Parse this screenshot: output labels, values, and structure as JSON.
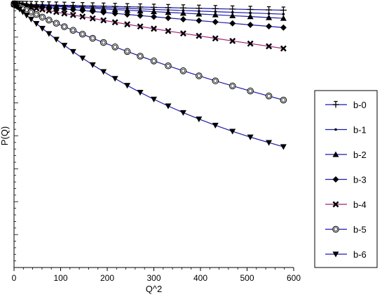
{
  "chart_data": {
    "type": "line",
    "title": "",
    "xlabel": "Q^2",
    "ylabel": "P(Q)",
    "xlim": [
      0,
      600
    ],
    "xticks": [
      "0",
      "100",
      "200",
      "300",
      "400",
      "500",
      "600"
    ],
    "ylim": [
      0.0,
      1.0
    ],
    "y_tick_labels_shown": false,
    "grid": false,
    "legend_position": "right",
    "x": [
      0,
      0.75,
      3,
      6.75,
      12,
      18.75,
      27,
      36.75,
      48,
      60.75,
      75,
      90.75,
      108,
      126.75,
      147,
      168.75,
      192,
      216.75,
      243,
      270.75,
      300,
      330.75,
      363,
      396.75,
      432,
      468.75,
      507,
      546.75,
      578
    ],
    "series": [
      {
        "name": "b-0",
        "marker": "tick",
        "line_color": "#1a1aa6",
        "values": [
          1.0,
          0.99997,
          0.99988,
          0.99973,
          0.99952,
          0.99925,
          0.99892,
          0.99853,
          0.99808,
          0.99757,
          0.997,
          0.99638,
          0.99569,
          0.99495,
          0.99415,
          0.99329,
          0.99237,
          0.9914,
          0.99036,
          0.98928,
          0.98813,
          0.98693,
          0.98567,
          0.98435,
          0.98298,
          0.98155,
          0.98007,
          0.97853,
          0.97729
        ]
      },
      {
        "name": "b-1",
        "marker": "dot",
        "line_color": "#1a1aa6",
        "values": [
          1.0,
          0.99995,
          0.9998,
          0.99955,
          0.9992,
          0.99875,
          0.9982,
          0.99755,
          0.9968,
          0.99595,
          0.99501,
          0.99396,
          0.99282,
          0.99158,
          0.99024,
          0.98881,
          0.98728,
          0.98566,
          0.98393,
          0.98212,
          0.98021,
          0.97821,
          0.97612,
          0.97393,
          0.97165,
          0.96928,
          0.96682,
          0.96428,
          0.96222
        ]
      },
      {
        "name": "b-2",
        "marker": "triangle-up",
        "line_color": "#1a1aa6",
        "values": [
          1.0,
          0.99993,
          0.99971,
          0.99936,
          0.99886,
          0.99822,
          0.99744,
          0.99651,
          0.99545,
          0.99424,
          0.9929,
          0.99141,
          0.98979,
          0.98802,
          0.98612,
          0.98409,
          0.98192,
          0.97961,
          0.97717,
          0.97459,
          0.97189,
          0.96906,
          0.9661,
          0.96301,
          0.95979,
          0.95646,
          0.953,
          0.94942,
          0.94653
        ]
      },
      {
        "name": "b-3",
        "marker": "diamond",
        "line_color": "#1a1aa6",
        "values": [
          1.0,
          0.99988,
          0.9995,
          0.99888,
          0.998,
          0.99688,
          0.99552,
          0.99392,
          0.99207,
          0.98999,
          0.98768,
          0.98513,
          0.98235,
          0.97934,
          0.97612,
          0.97267,
          0.96901,
          0.96513,
          0.96105,
          0.95677,
          0.9523,
          0.94764,
          0.94279,
          0.93776,
          0.93256,
          0.92719,
          0.92165,
          0.91596,
          0.91134
        ]
      },
      {
        "name": "b-4",
        "marker": "x",
        "line_color": "#a0207a",
        "values": [
          1.0,
          0.99975,
          0.999,
          0.99775,
          0.99601,
          0.99378,
          0.99107,
          0.98787,
          0.9842,
          0.98007,
          0.97548,
          0.97044,
          0.96496,
          0.95906,
          0.95275,
          0.94604,
          0.93894,
          0.93147,
          0.92365,
          0.91549,
          0.90701,
          0.89823,
          0.88916,
          0.87983,
          0.87026,
          0.86045,
          0.85044,
          0.84024,
          0.83195
        ]
      },
      {
        "name": "b-5",
        "marker": "circle",
        "line_color": "#1a1aa6",
        "values": [
          1.0,
          0.99938,
          0.9975,
          0.99439,
          0.99005,
          0.98451,
          0.97779,
          0.96992,
          0.96092,
          0.95086,
          0.93977,
          0.92769,
          0.91469,
          0.9008,
          0.88611,
          0.87066,
          0.85453,
          0.83778,
          0.82047,
          0.80268,
          0.78448,
          0.76593,
          0.74712,
          0.7281,
          0.70894,
          0.68971,
          0.67048,
          0.65129,
          0.636
        ]
      },
      {
        "name": "b-6",
        "marker": "triangle-down",
        "line_color": "#1a1aa6",
        "values": [
          1.0,
          0.9988,
          0.9952,
          0.98925,
          0.98098,
          0.97046,
          0.95778,
          0.94306,
          0.92642,
          0.908,
          0.88797,
          0.86649,
          0.84374,
          0.81991,
          0.7952,
          0.76979,
          0.74388,
          0.71767,
          0.69133,
          0.66505,
          0.639,
          0.61334,
          0.5882,
          0.56373,
          0.54003,
          0.51719,
          0.4953,
          0.47441,
          0.45859
        ]
      }
    ]
  }
}
